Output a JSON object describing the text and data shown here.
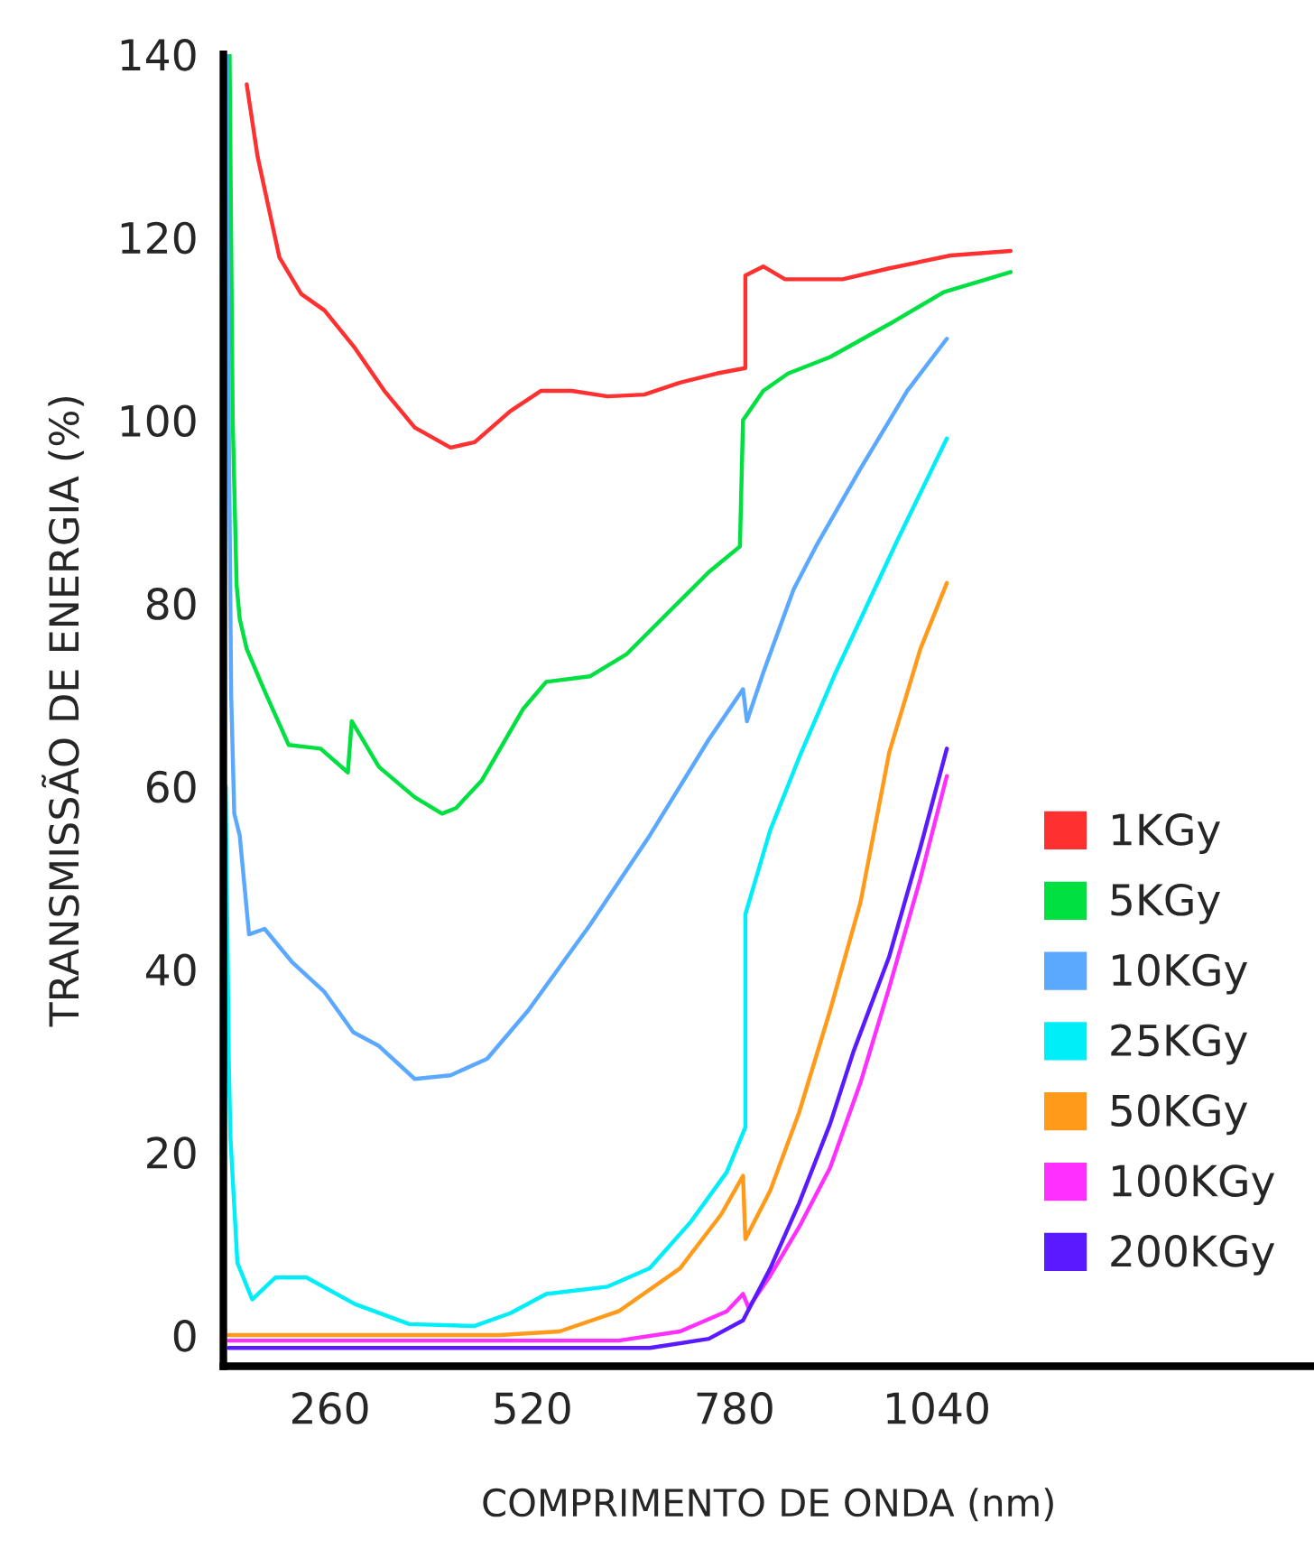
{
  "chart_data": {
    "type": "line",
    "xlabel": "COMPRIMENTO DE ONDA (nm)",
    "ylabel": "TRANSMISSÃO DE ENERGIA (%)",
    "xlim": [
      123,
      1525
    ],
    "ylim": [
      -3.4,
      140
    ],
    "xticks": [
      260,
      520,
      780,
      1040
    ],
    "yticks": [
      0,
      20,
      40,
      60,
      80,
      100,
      120,
      140
    ],
    "grid": false,
    "legend": "bottom right",
    "marker": "none",
    "line_style": "solid",
    "series": [
      {
        "name": "1KGy",
        "color": "#ff3030",
        "x": [
          153,
          167,
          195,
          223,
          253,
          292,
          330,
          369,
          415,
          446,
          492,
          531,
          571,
          617,
          664,
          710,
          757,
          794,
          794,
          817,
          845,
          919,
          979,
          1058,
          1135
        ],
        "values": [
          136.7,
          128.8,
          117.8,
          113.8,
          112,
          107.9,
          103.2,
          99.2,
          97,
          97.6,
          101,
          103.2,
          103.2,
          102.6,
          102.8,
          104.1,
          105.1,
          105.7,
          115.8,
          116.8,
          115.4,
          115.4,
          116.6,
          118,
          118.5
        ]
      },
      {
        "name": "5KGy",
        "color": "#00e040",
        "x": [
          131,
          135,
          140,
          144,
          153,
          176,
          207,
          248,
          283,
          288,
          323,
          369,
          404,
          422,
          455,
          508,
          538,
          594,
          641,
          701,
          747,
          787,
          791,
          817,
          849,
          903,
          979,
          1049,
          1135
        ],
        "values": [
          140,
          100,
          82,
          78.3,
          75,
          70.4,
          64.5,
          64.1,
          61.5,
          67.1,
          62.1,
          58.8,
          57,
          57.6,
          60.6,
          68.4,
          71.4,
          72,
          74.4,
          79.5,
          83.4,
          86.2,
          100,
          103.2,
          105.1,
          106.9,
          110.5,
          114,
          116.2
        ]
      },
      {
        "name": "10KGy",
        "color": "#5aa8ff",
        "x": [
          127,
          130,
          133,
          137,
          144,
          156,
          176,
          211,
          253,
          290,
          323,
          369,
          415,
          462,
          515,
          594,
          671,
          747,
          791,
          796,
          817,
          856,
          886,
          942,
          1002,
          1053
        ],
        "values": [
          140,
          100,
          70,
          57,
          54.6,
          43.8,
          44.4,
          40.8,
          37.5,
          33.1,
          31.6,
          28,
          28.4,
          30.2,
          35.5,
          44.8,
          54.6,
          65.1,
          70.6,
          67.1,
          72.4,
          81.5,
          86.4,
          94.7,
          103.2,
          108.9
        ]
      },
      {
        "name": "25KGy",
        "color": "#00eef8",
        "x": [
          126,
          130,
          132,
          141,
          160,
          190,
          230,
          292,
          362,
          446,
          492,
          538,
          617,
          671,
          724,
          770,
          794,
          794,
          826,
          863,
          910,
          989,
          1053
        ],
        "values": [
          60,
          30,
          21.7,
          7.9,
          3.9,
          6.3,
          6.3,
          3.4,
          1.2,
          1,
          2.4,
          4.5,
          5.3,
          7.3,
          12.4,
          17.8,
          22.7,
          46,
          55.2,
          63.1,
          72.4,
          86.8,
          98
        ]
      },
      {
        "name": "50KGy",
        "color": "#ff9a1a",
        "x": [
          130,
          246,
          478,
          555,
          631,
          710,
          763,
          791,
          794,
          826,
          863,
          903,
          942,
          979,
          1019,
          1053
        ],
        "values": [
          0,
          0,
          0,
          0.4,
          2.6,
          7.3,
          13.2,
          17.4,
          10.5,
          15.8,
          24.3,
          35.5,
          47.3,
          63.7,
          75,
          82.2
        ]
      },
      {
        "name": "100KGy",
        "color": "#ff30ff",
        "x": [
          130,
          631,
          710,
          770,
          791,
          798,
          826,
          863,
          903,
          942,
          979,
          1019,
          1053
        ],
        "values": [
          -0.6,
          -0.6,
          0.4,
          2.6,
          4.5,
          3,
          6.5,
          11.8,
          18.3,
          27.6,
          38,
          49.9,
          61.1
        ]
      },
      {
        "name": "200KGy",
        "color": "#5a1aff",
        "x": [
          130,
          671,
          747,
          791,
          826,
          863,
          903,
          933,
          979,
          1019,
          1053
        ],
        "values": [
          -1.4,
          -1.4,
          -0.4,
          1.6,
          7.3,
          14.4,
          23.1,
          31,
          41.4,
          53.3,
          64.1
        ]
      }
    ]
  }
}
